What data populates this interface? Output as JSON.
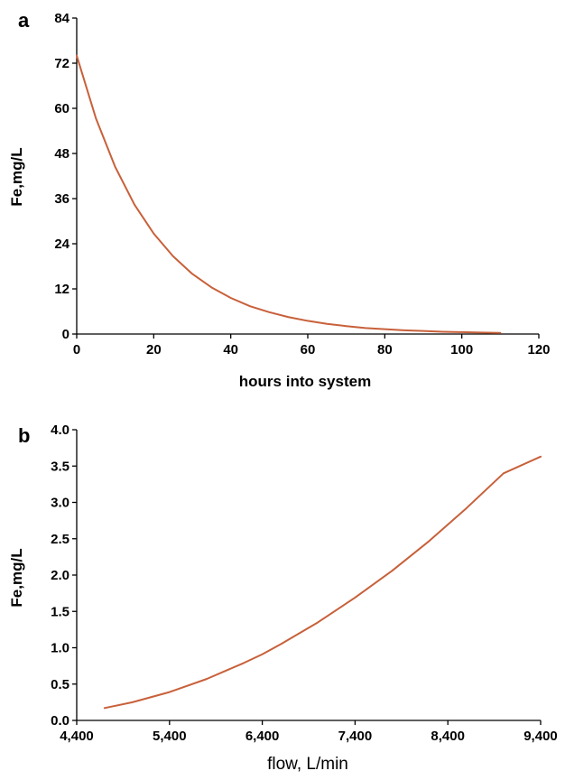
{
  "colors": {
    "curve": "#c8603a",
    "axis": "#000000"
  },
  "chart_data": [
    {
      "type": "line",
      "panel_label": "a",
      "xlabel": "hours into system",
      "ylabel": "Fe,mg/L",
      "xlim": [
        0,
        120
      ],
      "ylim": [
        0,
        84
      ],
      "xticks": [
        "0",
        "20",
        "40",
        "60",
        "80",
        "100",
        "120"
      ],
      "yticks": [
        "0",
        "12",
        "24",
        "36",
        "48",
        "60",
        "72",
        "84"
      ],
      "grid": false,
      "series": [
        {
          "x": [
            0,
            5,
            10,
            15,
            20,
            25,
            30,
            35,
            40,
            45,
            50,
            55,
            60,
            65,
            70,
            75,
            80,
            85,
            90,
            95,
            100,
            105,
            110
          ],
          "y": [
            74,
            57.3,
            44.4,
            34.4,
            26.7,
            20.7,
            16.0,
            12.4,
            9.6,
            7.4,
            5.8,
            4.5,
            3.5,
            2.7,
            2.1,
            1.6,
            1.3,
            1.0,
            0.8,
            0.6,
            0.5,
            0.4,
            0.3
          ]
        }
      ]
    },
    {
      "type": "line",
      "panel_label": "b",
      "xlabel": "flow, L/min",
      "ylabel": "Fe,mg/L",
      "xlim": [
        4400,
        9400
      ],
      "ylim": [
        0,
        4.0
      ],
      "xticks": [
        "4,400",
        "5,400",
        "6,400",
        "7,400",
        "8,400",
        "9,400"
      ],
      "yticks": [
        "0.0",
        "0.5",
        "1.0",
        "1.5",
        "2.0",
        "2.5",
        "3.0",
        "3.5",
        "4.0"
      ],
      "grid": false,
      "series": [
        {
          "x": [
            4700,
            5000,
            5400,
            5800,
            6200,
            6400,
            6600,
            7000,
            7400,
            7800,
            8200,
            8600,
            9000,
            9400
          ],
          "y": [
            0.17,
            0.25,
            0.39,
            0.57,
            0.79,
            0.91,
            1.05,
            1.35,
            1.69,
            2.06,
            2.47,
            2.92,
            3.4,
            3.63
          ]
        }
      ]
    }
  ]
}
